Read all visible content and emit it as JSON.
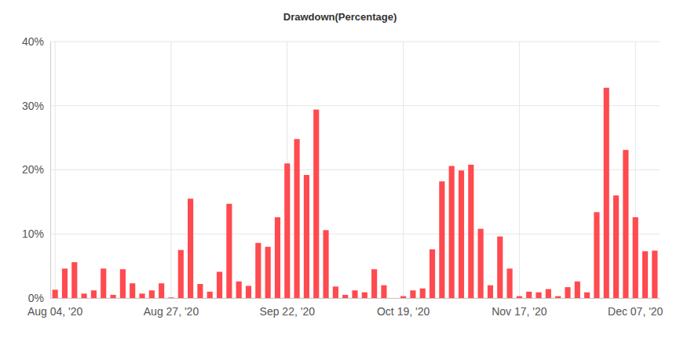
{
  "chart_data": {
    "type": "bar",
    "title": "Drawdown(Percentage)",
    "categories": [
      "Aug 04, '20",
      null,
      null,
      null,
      null,
      null,
      null,
      null,
      null,
      null,
      null,
      null,
      "Aug 27, '20",
      null,
      null,
      null,
      null,
      null,
      null,
      null,
      null,
      null,
      null,
      null,
      "Sep 22, '20",
      null,
      null,
      null,
      null,
      null,
      null,
      null,
      null,
      null,
      null,
      null,
      "Oct 19, '20",
      null,
      null,
      null,
      null,
      null,
      null,
      null,
      null,
      null,
      null,
      null,
      "Nov 17, '20",
      null,
      null,
      null,
      null,
      null,
      null,
      null,
      null,
      null,
      null,
      null,
      "Dec 07, '20",
      null,
      null
    ],
    "values": [
      1.3,
      4.6,
      5.6,
      0.7,
      1.2,
      4.6,
      0.5,
      4.5,
      2.3,
      0.7,
      1.2,
      2.3,
      0.1,
      7.5,
      15.5,
      2.2,
      1.0,
      4.1,
      14.7,
      2.6,
      1.9,
      8.6,
      8.0,
      12.6,
      21.0,
      24.8,
      19.2,
      29.4,
      10.6,
      1.8,
      0.5,
      1.2,
      0.9,
      4.5,
      2.0,
      0,
      0.3,
      1.2,
      1.5,
      7.6,
      18.2,
      20.6,
      19.9,
      20.8,
      10.8,
      2.0,
      9.6,
      4.6,
      0.3,
      1.0,
      0.9,
      1.4,
      0.3,
      1.7,
      2.6,
      0.9,
      13.4,
      32.8,
      16.0,
      23.1,
      12.6,
      7.3,
      7.4
    ],
    "color": "#ff4a4f",
    "ylim": [
      0,
      40
    ],
    "yticks": [
      {
        "value": 0,
        "label": "0%"
      },
      {
        "value": 10,
        "label": "10%"
      },
      {
        "value": 20,
        "label": "20%"
      },
      {
        "value": 30,
        "label": "30%"
      },
      {
        "value": 40,
        "label": "40%"
      }
    ],
    "grid": true
  }
}
